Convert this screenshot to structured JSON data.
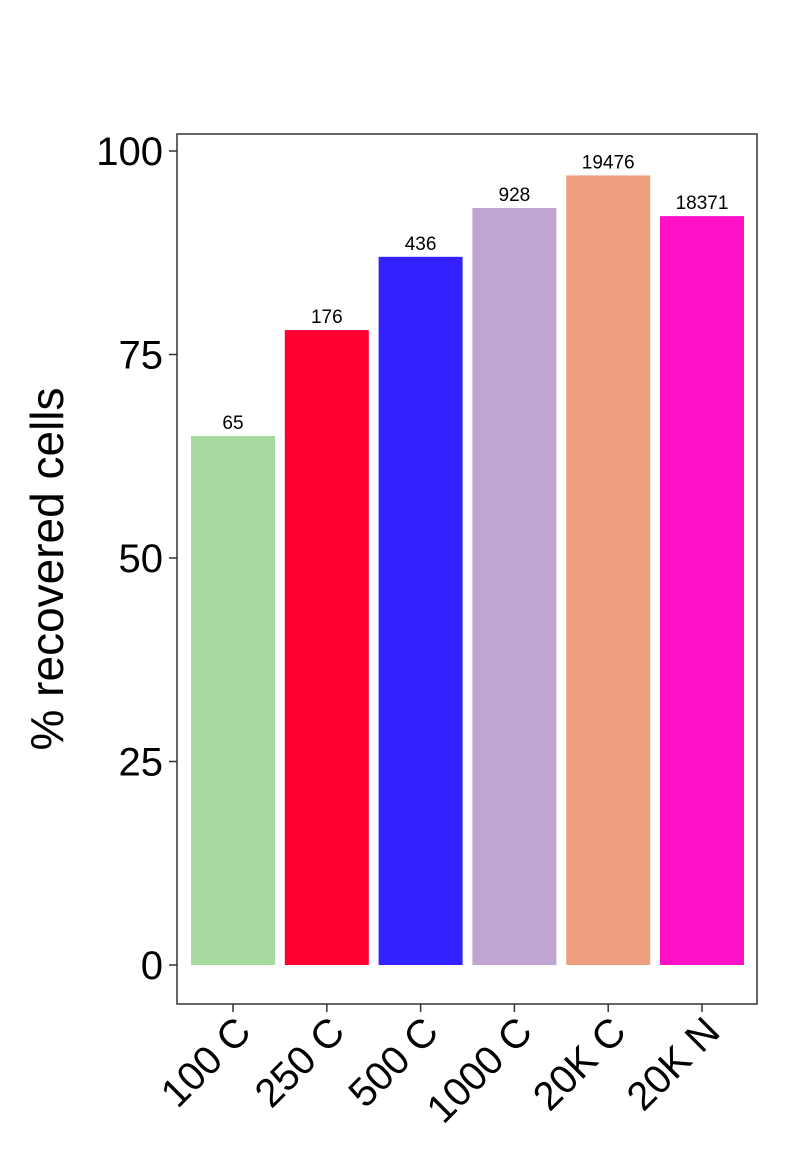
{
  "chart_data": {
    "type": "bar",
    "title": "",
    "xlabel": "",
    "ylabel": "% recovered cells",
    "ylim": [
      0,
      104
    ],
    "yticks": [
      0,
      25,
      50,
      75,
      100
    ],
    "grid": false,
    "legend": "none",
    "categories": [
      "100 C",
      "250 C",
      "500 C",
      "1000 C",
      "20K C",
      "20K N"
    ],
    "values": [
      65,
      78,
      87,
      93,
      97,
      92
    ],
    "labels": [
      "65",
      "176",
      "436",
      "928",
      "19476",
      "18371"
    ],
    "colors": [
      "#a8d9a0",
      "#ff0033",
      "#3322ff",
      "#c0a4d2",
      "#eea07e",
      "#ff11c8"
    ]
  }
}
